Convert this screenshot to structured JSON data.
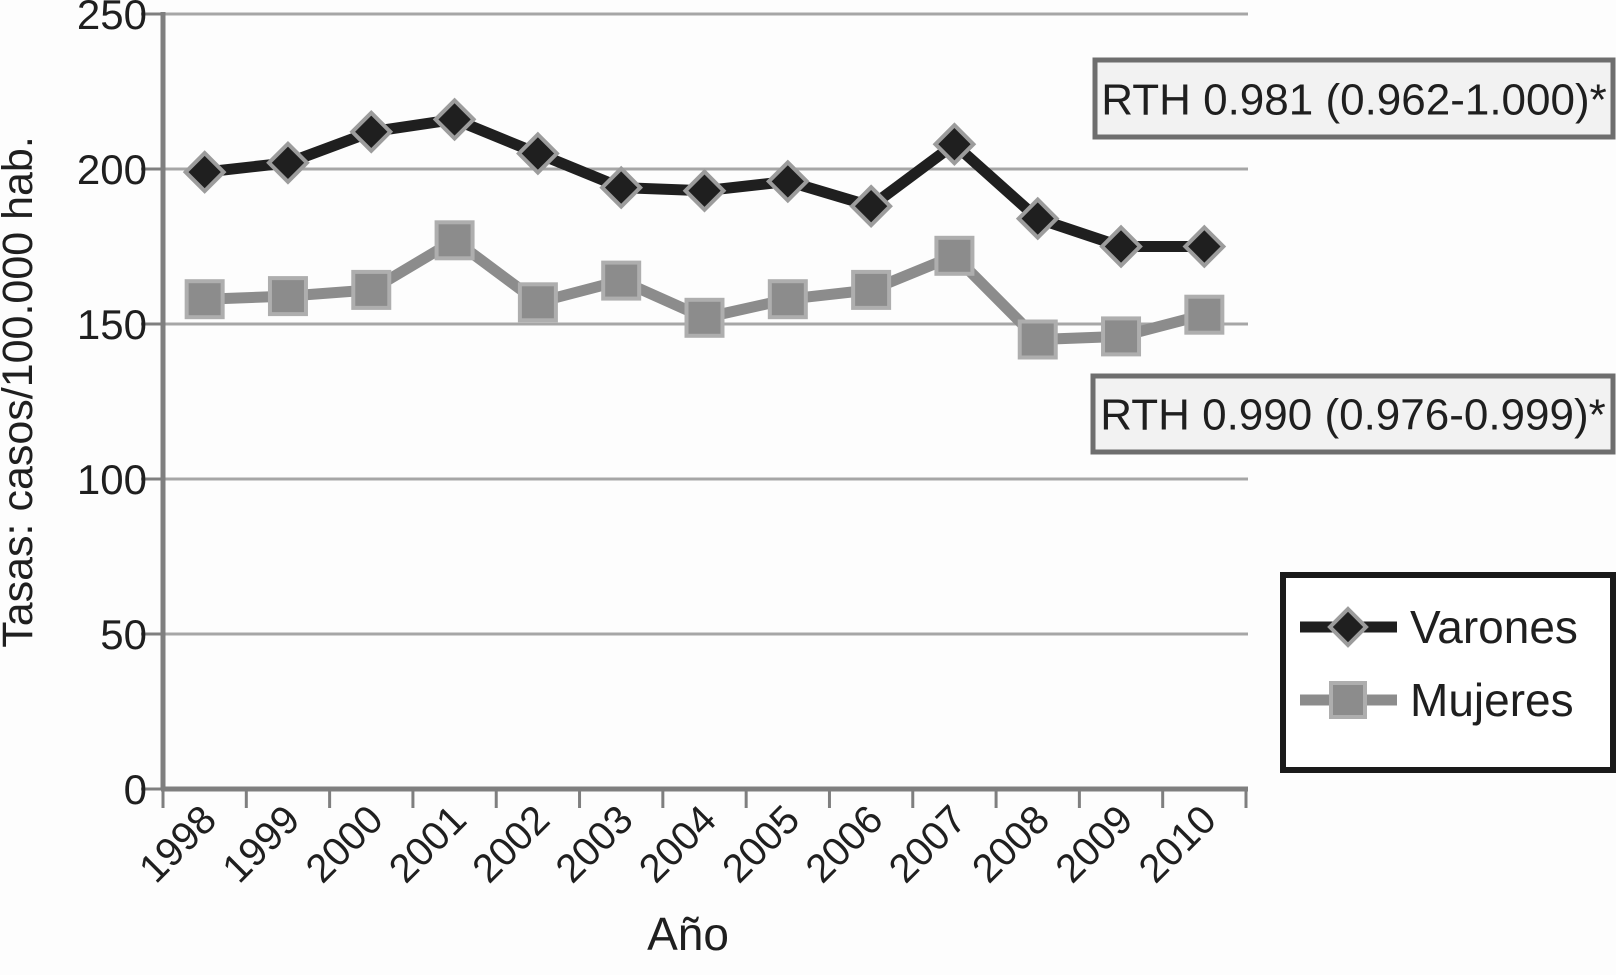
{
  "figure": {
    "background": "#fdfdfd"
  },
  "colors": {
    "varones_line": "#1f1f1f",
    "varones_marker_stroke": "#9c9c9c",
    "mujeres_line": "#8c8c8c",
    "mujeres_marker_stroke": "#aeaeae",
    "gridline": "#a6a6a6",
    "axis": "#7f7f7f",
    "annotation_fill": "#f2f2f2",
    "annotation_border": "#6e6e6e",
    "legend_fill": "#ffffff",
    "legend_border": "#1a1a1a",
    "text": "#1f1f1f"
  },
  "chart_data": {
    "type": "line",
    "title": "",
    "xlabel": "Año",
    "ylabel": "Tasas: casos/100.000 hab.",
    "categories": [
      "1998",
      "1999",
      "2000",
      "2001",
      "2002",
      "2003",
      "2004",
      "2005",
      "2006",
      "2007",
      "2008",
      "2009",
      "2010"
    ],
    "series": [
      {
        "name": "Varones",
        "marker": "diamond",
        "color": "#1f1f1f",
        "marker_stroke": "#9c9c9c",
        "values": [
          199,
          202,
          212,
          216,
          205,
          194,
          193,
          196,
          188,
          208,
          184,
          175,
          175
        ]
      },
      {
        "name": "Mujeres",
        "marker": "square",
        "color": "#8c8c8c",
        "marker_stroke": "#aeaeae",
        "values": [
          158,
          159,
          161,
          177,
          157,
          164,
          152,
          158,
          161,
          172,
          145,
          146,
          153
        ]
      }
    ],
    "ylim": [
      0,
      250
    ],
    "yticks": [
      0,
      50,
      100,
      150,
      200,
      250
    ],
    "grid": true,
    "legend_position": "right-bottom",
    "annotations": [
      {
        "id": "rth-varones",
        "text": "RTH 0.981 (0.962-1.000)*"
      },
      {
        "id": "rth-mujeres",
        "text": "RTH 0.990 (0.976-0.999)*"
      }
    ]
  }
}
